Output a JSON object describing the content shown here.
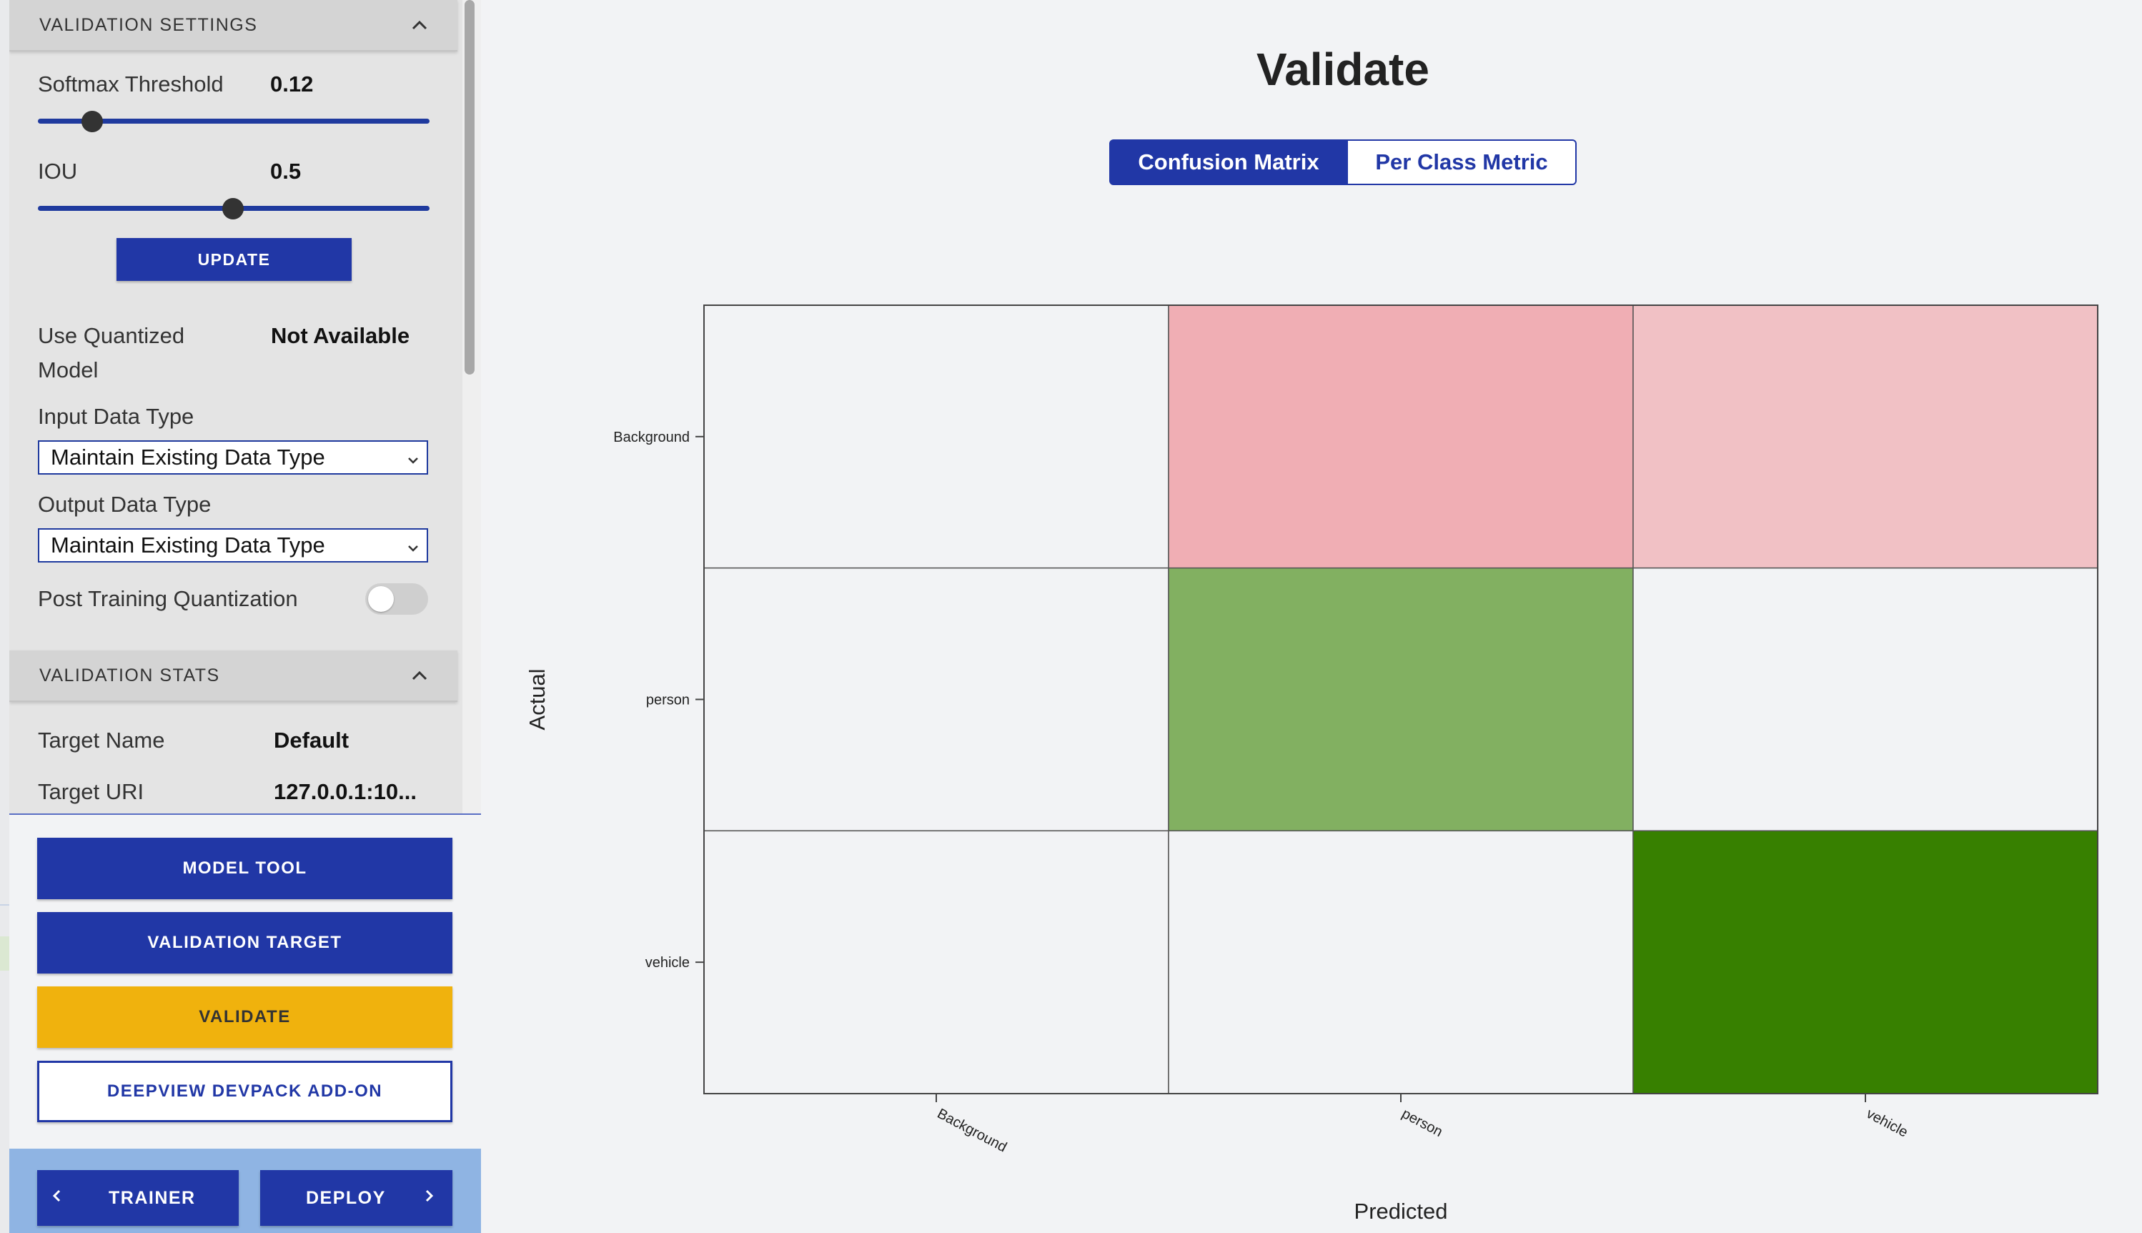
{
  "sidebar": {
    "validation_settings": {
      "header": "VALIDATION SETTINGS",
      "softmax_label": "Softmax Threshold",
      "softmax_value": "0.12",
      "softmax_level": 0.12,
      "iou_label": "IOU",
      "iou_value": "0.5",
      "iou_level": 0.5,
      "update_label": "UPDATE",
      "quantized_label_line1": "Use Quantized",
      "quantized_label_line2": "Model",
      "quantized_value": "Not Available",
      "input_type_label": "Input Data Type",
      "input_type_selected": "Maintain Existing Data Type",
      "output_type_label": "Output Data Type",
      "output_type_selected": "Maintain Existing Data Type",
      "ptq_label": "Post Training Quantization",
      "ptq_enabled": false
    },
    "validation_stats": {
      "header": "VALIDATION STATS",
      "target_name_label": "Target Name",
      "target_name_value": "Default",
      "target_uri_label": "Target URI",
      "target_uri_value": "127.0.0.1:10..."
    },
    "buttons": {
      "model_tool": "MODEL TOOL",
      "validation_target": "VALIDATION TARGET",
      "validate": "VALIDATE",
      "deepview": "DEEPVIEW DEVPACK ADD-ON"
    },
    "nav": {
      "prev": "TRAINER",
      "next": "DEPLOY"
    }
  },
  "main": {
    "title": "Validate",
    "tabs": [
      {
        "label": "Confusion Matrix",
        "active": true
      },
      {
        "label": "Per Class Metric",
        "active": false
      }
    ]
  },
  "colors": {
    "primary": "#2137a6",
    "validate_button": "#f0b20d",
    "nav_bar": "#8fb4e3"
  },
  "chart_data": {
    "type": "heatmap",
    "title": "",
    "xlabel": "Predicted",
    "ylabel": "Actual",
    "x_categories": [
      "Background",
      "person",
      "vehicle"
    ],
    "y_categories": [
      "Background",
      "person",
      "vehicle"
    ],
    "cell_colors": [
      [
        "#f2f3f5",
        "#f0aeb4",
        "#f1c1c5"
      ],
      [
        "#f2f3f5",
        "#82b061",
        "#f2f3f5"
      ],
      [
        "#f2f3f5",
        "#f2f3f5",
        "#378000"
      ]
    ],
    "grid": true
  }
}
